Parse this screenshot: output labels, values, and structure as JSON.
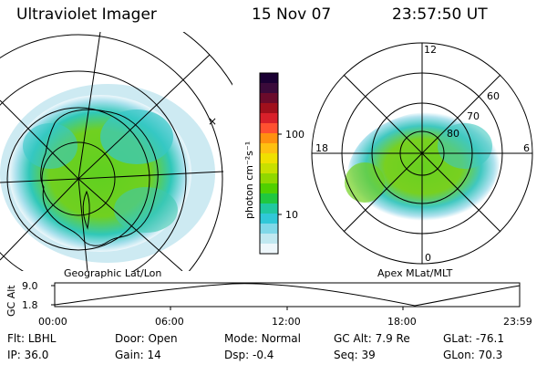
{
  "header": {
    "instrument": "Ultraviolet Imager",
    "date": "15 Nov 07",
    "time": "23:57:50 UT"
  },
  "left_map": {
    "caption": "Geographic Lat/Lon"
  },
  "right_map": {
    "caption": "Apex MLat/MLT",
    "mlt_labels": [
      "12",
      "18",
      "6",
      "0"
    ],
    "lat_labels": [
      "60",
      "70",
      "80"
    ]
  },
  "colorbar": {
    "title": "photon cm⁻²s⁻¹",
    "ticks": [
      "100",
      "10"
    ],
    "colors": [
      "#1a0033",
      "#3a0a3a",
      "#6b0b2b",
      "#a0101c",
      "#d8202a",
      "#ff5030",
      "#ff9010",
      "#ffc010",
      "#f0e000",
      "#c8e000",
      "#90d800",
      "#50d000",
      "#20c840",
      "#20c8a0",
      "#30c8d8",
      "#80d8e8",
      "#c0e8f0",
      "#eef7fb"
    ]
  },
  "altitude_plot": {
    "ylabel": "GC Alt",
    "yticks": [
      "9.0",
      "1.8"
    ],
    "xticks": [
      "00:00",
      "06:00",
      "12:00",
      "18:00",
      "23:59"
    ]
  },
  "status": {
    "row1": [
      {
        "label": "Flt:",
        "value": "LBHL"
      },
      {
        "label": "Door:",
        "value": "Open"
      },
      {
        "label": "Mode:",
        "value": "Normal"
      },
      {
        "label": "GC Alt:",
        "value": "7.9 Re"
      },
      {
        "label": "GLat:",
        "value": "-76.1"
      }
    ],
    "row2": [
      {
        "label": "IP:",
        "value": "36.0"
      },
      {
        "label": "Gain:",
        "value": "14"
      },
      {
        "label": "Dsp:",
        "value": "-0.4"
      },
      {
        "label": "Seq:",
        "value": "39"
      },
      {
        "label": "GLon:",
        "value": "70.3"
      }
    ]
  }
}
